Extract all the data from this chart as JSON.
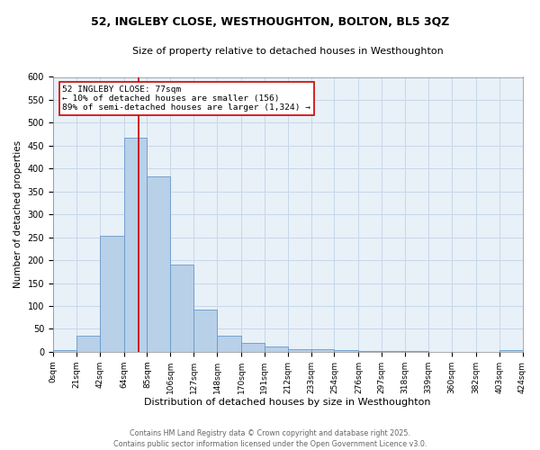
{
  "title1": "52, INGLEBY CLOSE, WESTHOUGHTON, BOLTON, BL5 3QZ",
  "title2": "Size of property relative to detached houses in Westhoughton",
  "xlabel": "Distribution of detached houses by size in Westhoughton",
  "ylabel": "Number of detached properties",
  "bin_edges": [
    0,
    21,
    42,
    64,
    85,
    106,
    127,
    148,
    170,
    191,
    212,
    233,
    254,
    276,
    297,
    318,
    339,
    360,
    382,
    403,
    424
  ],
  "bar_heights": [
    3,
    35,
    253,
    467,
    383,
    190,
    93,
    35,
    20,
    12,
    5,
    6,
    3,
    2,
    2,
    1,
    0,
    0,
    0,
    3
  ],
  "bar_color": "#b8d0e8",
  "bar_edge_color": "#6699cc",
  "property_size": 77,
  "vline_color": "#cc0000",
  "annotation_text": "52 INGLEBY CLOSE: 77sqm\n← 10% of detached houses are smaller (156)\n89% of semi-detached houses are larger (1,324) →",
  "annotation_box_color": "#ffffff",
  "annotation_box_edge_color": "#cc0000",
  "ylim": [
    0,
    600
  ],
  "yticks": [
    0,
    50,
    100,
    150,
    200,
    250,
    300,
    350,
    400,
    450,
    500,
    550,
    600
  ],
  "tick_labels": [
    "0sqm",
    "21sqm",
    "42sqm",
    "64sqm",
    "85sqm",
    "106sqm",
    "127sqm",
    "148sqm",
    "170sqm",
    "191sqm",
    "212sqm",
    "233sqm",
    "254sqm",
    "276sqm",
    "297sqm",
    "318sqm",
    "339sqm",
    "360sqm",
    "382sqm",
    "403sqm",
    "424sqm"
  ],
  "grid_color": "#c8d8e8",
  "background_color": "#e8f0f8",
  "footer_line1": "Contains HM Land Registry data © Crown copyright and database right 2025.",
  "footer_line2": "Contains public sector information licensed under the Open Government Licence v3.0.",
  "title1_fontsize": 9,
  "title2_fontsize": 8,
  "annotation_fontsize": 6.8,
  "footer_fontsize": 5.8,
  "ylabel_fontsize": 7.5,
  "xlabel_fontsize": 8,
  "ytick_fontsize": 7,
  "xtick_fontsize": 6.5
}
